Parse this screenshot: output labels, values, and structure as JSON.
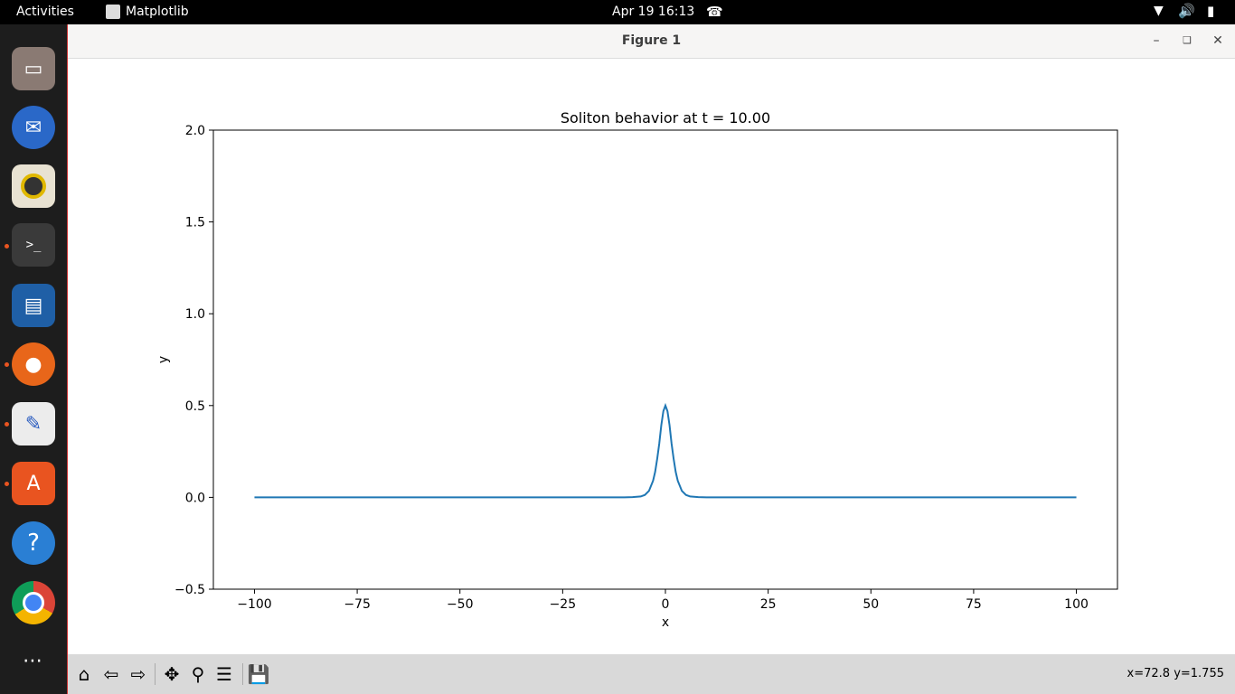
{
  "topbar": {
    "activities": "Activities",
    "app_name": "Matplotlib",
    "clock": "Apr 19  16:13"
  },
  "window": {
    "title": "Figure 1"
  },
  "toolbar": {
    "coords": "x=72.8 y=1.755"
  },
  "icons": {
    "home": "home-icon",
    "back": "back-arrow-icon",
    "forward": "forward-arrow-icon",
    "pan": "move-icon",
    "zoom": "magnifier-icon",
    "configure": "sliders-icon",
    "save": "floppy-disk-icon"
  },
  "chart_data": {
    "type": "line",
    "title": "Soliton behavior at t = 10.00",
    "xlabel": "x",
    "ylabel": "y",
    "xlim": [
      -110,
      110
    ],
    "ylim": [
      -0.5,
      2.0
    ],
    "xticks": [
      -100,
      -75,
      -50,
      -25,
      0,
      25,
      50,
      75,
      100
    ],
    "xtick_labels": [
      "−100",
      "−75",
      "−50",
      "−25",
      "0",
      "25",
      "50",
      "75",
      "100"
    ],
    "yticks": [
      -0.5,
      0.0,
      0.5,
      1.0,
      1.5,
      2.0
    ],
    "ytick_labels": [
      "−0.5",
      "0.0",
      "0.5",
      "1.0",
      "1.5",
      "2.0"
    ],
    "grid": false,
    "color": "#1f77b4",
    "series": [
      {
        "x": [
          -100,
          -20,
          -10,
          -8,
          -6,
          -5,
          -4,
          -3,
          -2.5,
          -2,
          -1.5,
          -1,
          -0.5,
          0,
          0.5,
          1,
          1.5,
          2,
          2.5,
          3,
          4,
          5,
          6,
          8,
          10,
          20,
          100
        ],
        "y": [
          0,
          0,
          0.0002,
          0.0011,
          0.0049,
          0.0132,
          0.0353,
          0.0905,
          0.139,
          0.21,
          0.2925,
          0.3932,
          0.4695,
          0.5,
          0.4695,
          0.3932,
          0.2925,
          0.21,
          0.139,
          0.0905,
          0.0353,
          0.0132,
          0.0049,
          0.0011,
          0.0002,
          0,
          0
        ]
      }
    ]
  }
}
